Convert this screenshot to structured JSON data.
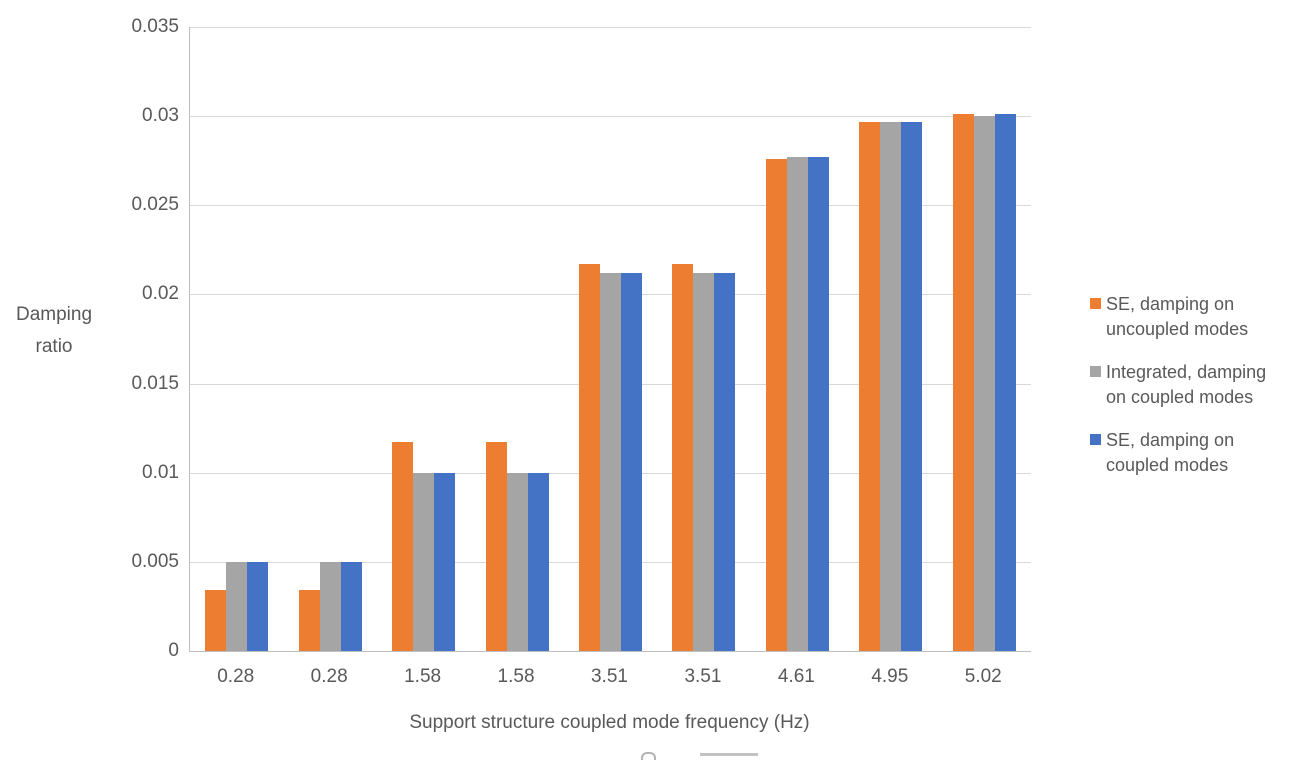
{
  "chart_data": {
    "type": "bar",
    "title": "",
    "categories": [
      "0.28",
      "0.28",
      "1.58",
      "1.58",
      "3.51",
      "3.51",
      "4.61",
      "4.95",
      "5.02"
    ],
    "series": [
      {
        "name": "SE, damping on uncoupled modes",
        "color": "#ED7D31",
        "values": [
          0.0034,
          0.0034,
          0.0117,
          0.0117,
          0.0217,
          0.0217,
          0.0276,
          0.0297,
          0.0301
        ]
      },
      {
        "name": "Integrated, damping on coupled modes",
        "color": "#A5A5A5",
        "values": [
          0.005,
          0.005,
          0.01,
          0.01,
          0.0212,
          0.0212,
          0.0277,
          0.0297,
          0.03
        ]
      },
      {
        "name": "SE, damping on coupled modes",
        "color": "#4472C4",
        "values": [
          0.005,
          0.005,
          0.01,
          0.01,
          0.0212,
          0.0212,
          0.0277,
          0.0297,
          0.0301
        ]
      }
    ],
    "xlabel": "Support structure coupled mode frequency (Hz)",
    "ylabel": "Damping ratio",
    "ylim": [
      0,
      0.035
    ],
    "ytick_step": 0.005,
    "ytick_labels": [
      "0",
      "0.005",
      "0.01",
      "0.015",
      "0.02",
      "0.025",
      "0.03",
      "0.035"
    ],
    "grid": true,
    "legend_position": "right"
  },
  "colors": {
    "text": "#595959",
    "gridline": "#D9D9D9",
    "axis": "#BFBFBF",
    "background": "#FFFFFF"
  }
}
